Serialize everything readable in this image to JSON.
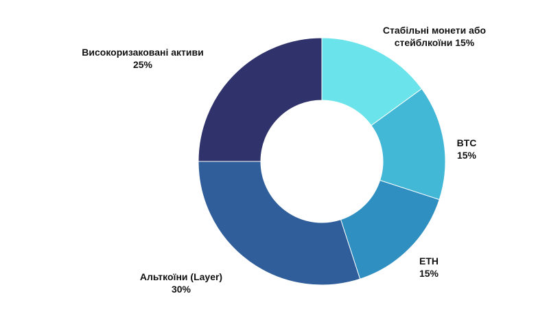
{
  "chart_data": {
    "type": "pie",
    "donut": true,
    "categories": [
      "Стабільні монети або стейблкоїни",
      "BTC",
      "ETH",
      "Альткоїни (Layer)",
      "Високоризаковані активи"
    ],
    "values": [
      15,
      15,
      15,
      30,
      25
    ],
    "unit": "%",
    "colors": [
      "#6ae4ea",
      "#42b7d6",
      "#2e8fc0",
      "#2f5e9a",
      "#30336b"
    ],
    "labels": [
      {
        "lines": [
          "Стабільні монети або",
          "стейблкоїни 15%"
        ]
      },
      {
        "lines": [
          "BTC",
          "15%"
        ]
      },
      {
        "lines": [
          "ETH",
          "15%"
        ]
      },
      {
        "lines": [
          "Альткоїни (Layer)",
          "30%"
        ]
      },
      {
        "lines": [
          "Високоризаковані активи",
          "25%"
        ]
      }
    ],
    "start_angle": "12 o'clock",
    "direction": "clockwise",
    "legend": "none"
  }
}
